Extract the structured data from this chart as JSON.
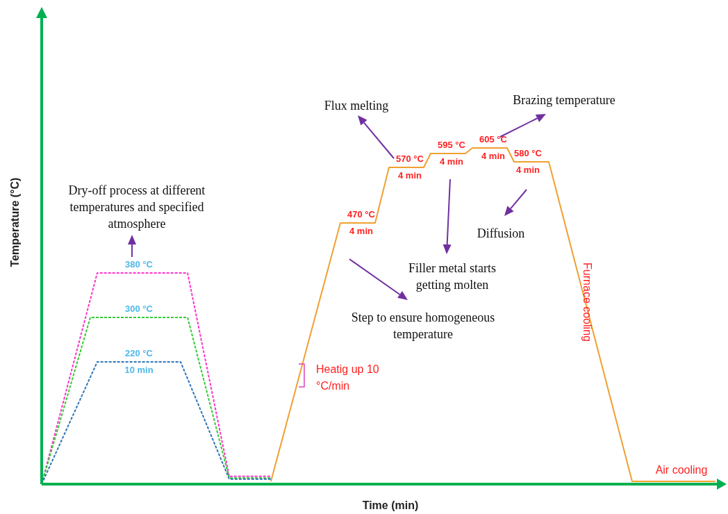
{
  "chart_data": {
    "type": "line",
    "xlabel": "Time (min)",
    "ylabel": "Temperature (°C)",
    "legend": false,
    "marker": "none",
    "categories": [
      null,
      null,
      null,
      null,
      null,
      null,
      null,
      null,
      null,
      null,
      null,
      null,
      null,
      null,
      null,
      null,
      null,
      null,
      null,
      null,
      null,
      null,
      null,
      null,
      null,
      null,
      null,
      null,
      null,
      null,
      null,
      null,
      null,
      null,
      null,
      null,
      null,
      null,
      null,
      null,
      null,
      null,
      null,
      null,
      null,
      null,
      null,
      null,
      null,
      null,
      null,
      null,
      null,
      null,
      null,
      null,
      null,
      null,
      null,
      null,
      null,
      null,
      null,
      null,
      null,
      null,
      null,
      null,
      null,
      null,
      null,
      null,
      null,
      null,
      null,
      null,
      null,
      null,
      null,
      null,
      null,
      null,
      null,
      null,
      null,
      null,
      null,
      null,
      null,
      null,
      null,
      null,
      null,
      null,
      null,
      null,
      null,
      null
    ],
    "series": [
      {
        "color": "#2e75b6",
        "line_style": "dashed",
        "values": [
          0,
          null,
          null,
          null,
          null,
          null,
          null,
          null,
          220,
          null,
          null,
          null,
          null,
          null,
          220,
          null,
          null,
          null,
          null,
          null,
          220,
          null,
          null,
          null,
          null,
          null,
          null,
          9,
          null,
          null,
          null,
          null,
          null,
          9,
          null,
          null,
          null,
          null,
          null,
          null,
          null,
          null,
          null,
          null,
          null,
          null,
          null,
          null,
          null,
          null,
          null,
          null,
          null,
          null,
          null,
          null,
          null,
          null,
          null,
          null,
          null,
          null,
          null,
          null,
          null,
          null,
          null,
          null,
          null,
          null,
          null,
          null,
          null,
          null,
          null,
          null,
          null,
          null,
          null,
          null,
          null,
          null,
          null,
          null,
          null,
          null,
          null,
          null,
          null,
          null,
          null,
          null,
          null,
          null,
          null,
          null,
          null,
          null
        ],
        "value_labels": [
          null,
          null,
          null,
          null,
          null,
          null,
          null,
          null,
          null,
          null,
          null,
          null,
          null,
          null,
          "220 °C\n10 min",
          null,
          null,
          null,
          null,
          null,
          null,
          null,
          null,
          null,
          null,
          null,
          null,
          null,
          null,
          null,
          null,
          null,
          null,
          null,
          null,
          null,
          null,
          null,
          null,
          null,
          null,
          null,
          null,
          null,
          null,
          null,
          null,
          null,
          null,
          null,
          null,
          null,
          null,
          null,
          null,
          null,
          null,
          null,
          null,
          null,
          null,
          null,
          null,
          null,
          null,
          null,
          null,
          null,
          null,
          null,
          null,
          null,
          null,
          null,
          null,
          null,
          null,
          null,
          null,
          null,
          null,
          null,
          null,
          null,
          null,
          null,
          null,
          null,
          null,
          null,
          null,
          null,
          null,
          null,
          null,
          null,
          null,
          null
        ]
      },
      {
        "color": "#33cc33",
        "line_style": "dashed",
        "values": [
          0,
          null,
          null,
          null,
          null,
          null,
          null,
          300,
          null,
          null,
          null,
          null,
          null,
          null,
          300,
          null,
          null,
          null,
          null,
          null,
          null,
          300,
          null,
          null,
          null,
          null,
          null,
          11,
          null,
          null,
          null,
          null,
          null,
          11,
          null,
          null,
          null,
          null,
          null,
          null,
          null,
          null,
          null,
          null,
          null,
          null,
          null,
          null,
          null,
          null,
          null,
          null,
          null,
          null,
          null,
          null,
          null,
          null,
          null,
          null,
          null,
          null,
          null,
          null,
          null,
          null,
          null,
          null,
          null,
          null,
          null,
          null,
          null,
          null,
          null,
          null,
          null,
          null,
          null,
          null,
          null,
          null,
          null,
          null,
          null,
          null,
          null,
          null,
          null,
          null,
          null,
          null,
          null,
          null,
          null,
          null,
          null,
          null
        ],
        "value_labels": [
          null,
          null,
          null,
          null,
          null,
          null,
          null,
          null,
          null,
          null,
          null,
          null,
          null,
          null,
          "300 °C",
          null,
          null,
          null,
          null,
          null,
          null,
          null,
          null,
          null,
          null,
          null,
          null,
          null,
          null,
          null,
          null,
          null,
          null,
          null,
          null,
          null,
          null,
          null,
          null,
          null,
          null,
          null,
          null,
          null,
          null,
          null,
          null,
          null,
          null,
          null,
          null,
          null,
          null,
          null,
          null,
          null,
          null,
          null,
          null,
          null,
          null,
          null,
          null,
          null,
          null,
          null,
          null,
          null,
          null,
          null,
          null,
          null,
          null,
          null,
          null,
          null,
          null,
          null,
          null,
          null,
          null,
          null,
          null,
          null,
          null,
          null,
          null,
          null,
          null,
          null,
          null,
          null,
          null,
          null,
          null,
          null,
          null,
          null
        ]
      },
      {
        "color": "#ff33cc",
        "line_style": "dashed",
        "values": [
          0,
          null,
          null,
          null,
          null,
          null,
          null,
          null,
          380,
          null,
          null,
          null,
          null,
          null,
          380,
          null,
          null,
          null,
          null,
          null,
          null,
          380,
          null,
          null,
          null,
          null,
          null,
          14,
          null,
          null,
          null,
          null,
          null,
          14,
          null,
          null,
          null,
          null,
          null,
          null,
          null,
          null,
          null,
          null,
          null,
          null,
          null,
          null,
          null,
          null,
          null,
          null,
          null,
          null,
          null,
          null,
          null,
          null,
          null,
          null,
          null,
          null,
          null,
          null,
          null,
          null,
          null,
          null,
          null,
          null,
          null,
          null,
          null,
          null,
          null,
          null,
          null,
          null,
          null,
          null,
          null,
          null,
          null,
          null,
          null,
          null,
          null,
          null,
          null,
          null,
          null,
          null,
          null,
          null,
          null,
          null,
          null,
          null
        ],
        "value_labels": [
          null,
          null,
          null,
          null,
          null,
          null,
          null,
          null,
          null,
          null,
          null,
          null,
          null,
          null,
          "380 °C",
          null,
          null,
          null,
          null,
          null,
          null,
          null,
          null,
          null,
          null,
          null,
          null,
          null,
          null,
          null,
          null,
          null,
          null,
          null,
          null,
          null,
          null,
          null,
          null,
          null,
          null,
          null,
          null,
          null,
          null,
          null,
          null,
          null,
          null,
          null,
          null,
          null,
          null,
          null,
          null,
          null,
          null,
          null,
          null,
          null,
          null,
          null,
          null,
          null,
          null,
          null,
          null,
          null,
          null,
          null,
          null,
          null,
          null,
          null,
          null,
          null,
          null,
          null,
          null,
          null,
          null,
          null,
          null,
          null,
          null,
          null,
          null,
          null,
          null,
          null,
          null,
          null,
          null,
          null,
          null,
          null,
          null,
          null
        ]
      },
      {
        "color": "#f0a030",
        "line_style": "solid",
        "values": [
          null,
          null,
          null,
          null,
          null,
          null,
          null,
          null,
          null,
          null,
          null,
          null,
          null,
          null,
          null,
          null,
          null,
          null,
          null,
          null,
          null,
          null,
          null,
          null,
          null,
          null,
          null,
          null,
          null,
          null,
          null,
          null,
          null,
          5,
          null,
          null,
          null,
          null,
          null,
          null,
          null,
          null,
          null,
          470,
          null,
          null,
          470,
          null,
          470,
          null,
          570,
          null,
          null,
          570,
          null,
          570,
          595,
          null,
          null,
          595,
          null,
          595,
          605,
          null,
          null,
          605,
          null,
          605,
          580,
          null,
          580,
          null,
          null,
          580,
          null,
          null,
          null,
          null,
          null,
          null,
          null,
          null,
          null,
          null,
          null,
          5,
          null,
          null,
          null,
          null,
          null,
          null,
          null,
          null,
          null,
          null,
          null,
          5
        ],
        "value_labels": [
          null,
          null,
          null,
          null,
          null,
          null,
          null,
          null,
          null,
          null,
          null,
          null,
          null,
          null,
          null,
          null,
          null,
          null,
          null,
          null,
          null,
          null,
          null,
          null,
          null,
          null,
          null,
          null,
          null,
          null,
          null,
          null,
          null,
          null,
          null,
          null,
          null,
          null,
          null,
          null,
          null,
          null,
          null,
          null,
          null,
          null,
          "470 °C\n4 min",
          null,
          null,
          null,
          null,
          null,
          null,
          "570 °C\n4 min",
          null,
          null,
          null,
          null,
          null,
          "595 °C\n4 min",
          null,
          null,
          null,
          null,
          null,
          "605 °C\n4 min",
          null,
          null,
          null,
          null,
          "580 °C\n4 min",
          null,
          null,
          null,
          null,
          null,
          null,
          null,
          null,
          null,
          null,
          null,
          null,
          null,
          null,
          null,
          null,
          null,
          null,
          null,
          null,
          null,
          null,
          null,
          null,
          null,
          null,
          null
        ]
      }
    ],
    "annotations": [
      "Flux melting",
      "Brazing temperature",
      "Dry-off process at different temperatures and specified atmosphere",
      "Diffusion",
      "Filler metal starts getting molten",
      "Step to ensure homogeneous temperature",
      "Heatig up 10 °C/min",
      "Furnace cooling",
      "Air cooling"
    ]
  }
}
